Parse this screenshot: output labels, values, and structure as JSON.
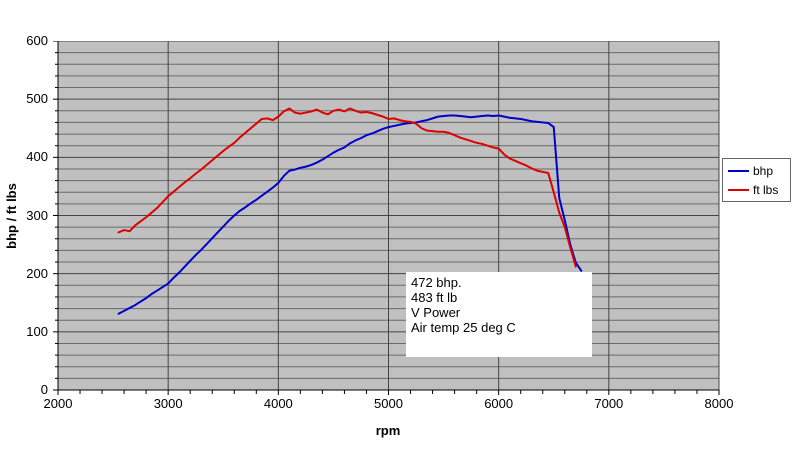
{
  "chart_data": {
    "type": "line",
    "title": "",
    "xlabel": "rpm",
    "ylabel": "bhp / ft lbs",
    "xlim": [
      2000,
      8000
    ],
    "ylim": [
      0,
      600
    ],
    "x_major": 1000,
    "x_minor": 200,
    "y_major": 100,
    "y_minor": 20,
    "grid": "horizontal minor+major, vertical major, gray plot background",
    "legend_position": "right",
    "x_ticks": [
      2000,
      3000,
      4000,
      5000,
      6000,
      7000,
      8000
    ],
    "y_ticks": [
      0,
      100,
      200,
      300,
      400,
      500,
      600
    ],
    "x": [
      2550,
      2600,
      2650,
      2700,
      2750,
      2800,
      2850,
      2900,
      2950,
      3000,
      3050,
      3100,
      3150,
      3200,
      3250,
      3300,
      3350,
      3400,
      3450,
      3500,
      3550,
      3600,
      3650,
      3700,
      3750,
      3800,
      3850,
      3900,
      3950,
      4000,
      4050,
      4100,
      4150,
      4200,
      4250,
      4300,
      4350,
      4400,
      4450,
      4500,
      4550,
      4600,
      4650,
      4700,
      4750,
      4800,
      4850,
      4900,
      4950,
      5000,
      5050,
      5100,
      5150,
      5200,
      5250,
      5300,
      5350,
      5400,
      5450,
      5500,
      5550,
      5600,
      5650,
      5700,
      5750,
      5800,
      5850,
      5900,
      5950,
      6000,
      6050,
      6100,
      6150,
      6200,
      6250,
      6300,
      6350,
      6400,
      6450,
      6500,
      6550,
      6600,
      6650,
      6700,
      6750
    ],
    "series": [
      {
        "name": "bhp",
        "color": "#0000cc",
        "values": [
          131,
          136,
          141,
          146,
          152,
          158,
          165,
          171,
          177,
          183,
          193,
          202,
          212,
          222,
          232,
          241,
          251,
          261,
          271,
          281,
          291,
          300,
          308,
          314,
          321,
          327,
          334,
          341,
          348,
          356,
          368,
          377,
          379,
          382,
          384,
          387,
          391,
          396,
          402,
          408,
          413,
          417,
          424,
          429,
          433,
          438,
          441,
          445,
          449,
          452,
          454,
          456,
          458,
          459,
          460,
          462,
          464,
          467,
          470,
          471,
          472,
          472,
          471,
          470,
          469,
          470,
          471,
          472,
          471,
          472,
          470,
          468,
          467,
          466,
          464,
          462,
          461,
          460,
          459,
          452,
          330,
          292,
          250,
          219,
          205
        ]
      },
      {
        "name": "ft lbs",
        "color": "#dd0000",
        "values": [
          271,
          275,
          273,
          283,
          290,
          297,
          305,
          313,
          323,
          333,
          341,
          349,
          357,
          364,
          372,
          379,
          387,
          395,
          403,
          411,
          418,
          425,
          434,
          442,
          450,
          458,
          466,
          467,
          464,
          470,
          479,
          484,
          477,
          475,
          477,
          479,
          482,
          477,
          474,
          480,
          482,
          479,
          484,
          480,
          477,
          478,
          476,
          473,
          470,
          466,
          467,
          464,
          462,
          461,
          458,
          450,
          446,
          445,
          444,
          444,
          442,
          438,
          434,
          431,
          428,
          425,
          423,
          420,
          417,
          415,
          405,
          398,
          394,
          390,
          386,
          381,
          377,
          375,
          373,
          340,
          305,
          280,
          245,
          212,
          null
        ]
      }
    ]
  },
  "legend": {
    "items": [
      {
        "label": "bhp",
        "color": "#0000cc"
      },
      {
        "label": "ft lbs",
        "color": "#dd0000"
      }
    ]
  },
  "annotation": {
    "lines": [
      "472 bhp.",
      "483 ft lb",
      "V Power",
      "Air temp 25 deg C"
    ]
  },
  "colors": {
    "plot_background": "#c0c0c0",
    "minor_gridline": "#6a6a6a",
    "major_gridline": "#444444",
    "axis": "#000000",
    "bhp_line": "#0000cc",
    "ftlbs_line": "#dd0000"
  }
}
